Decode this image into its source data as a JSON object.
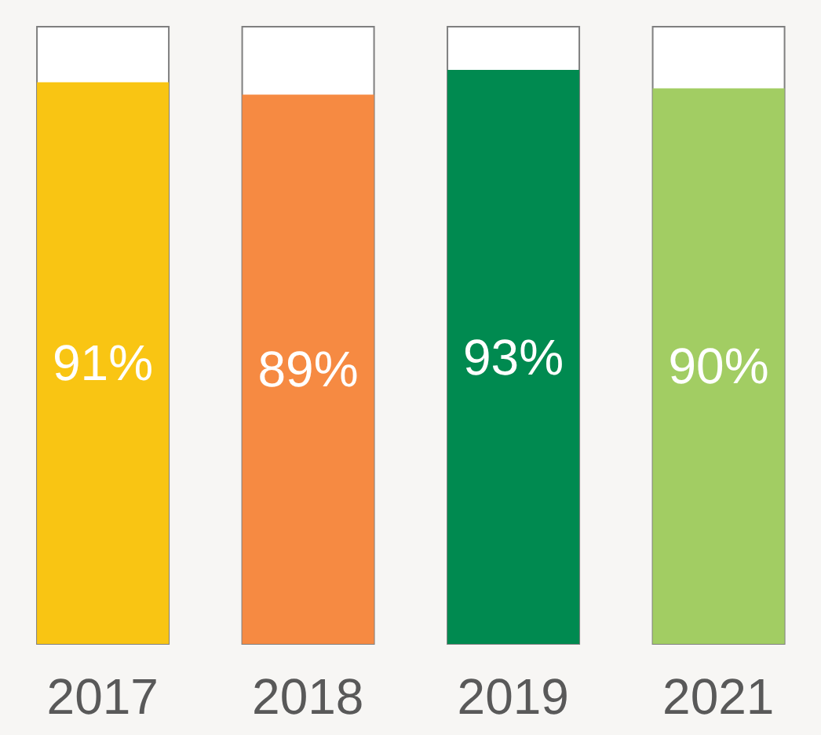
{
  "chart_data": {
    "type": "bar",
    "categories": [
      "2017",
      "2018",
      "2019",
      "2021"
    ],
    "values": [
      91,
      89,
      93,
      90
    ],
    "colors": [
      "#f9c513",
      "#f68a42",
      "#008a50",
      "#a2cd63"
    ],
    "value_labels": [
      "91%",
      "89%",
      "93%",
      "90%"
    ],
    "ylim": [
      0,
      100
    ],
    "tick_labels": "x",
    "grid": false
  }
}
